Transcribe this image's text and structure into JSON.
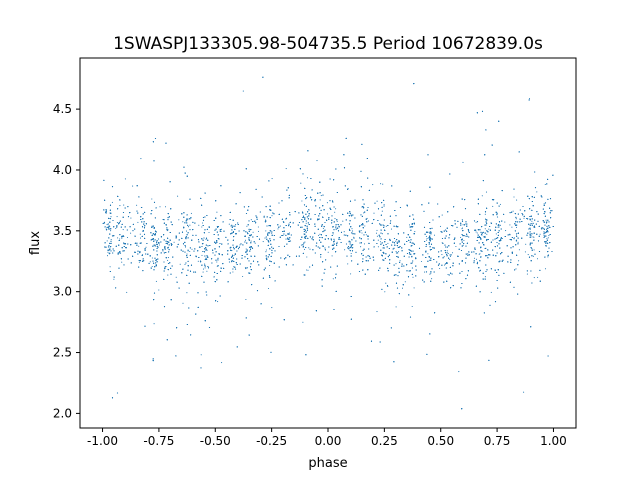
{
  "chart_data": {
    "type": "scatter",
    "title": "1SWASPJ133305.98-504735.5 Period 10672839.0s",
    "xlabel": "phase",
    "ylabel": "flux",
    "xlim": [
      -1.1,
      1.1
    ],
    "ylim": [
      1.88,
      4.92
    ],
    "xticks": [
      "-1.00",
      "-0.75",
      "-0.50",
      "-0.25",
      "0.00",
      "0.25",
      "0.50",
      "0.75",
      "1.00"
    ],
    "yticks": [
      "2.0",
      "2.5",
      "3.0",
      "3.5",
      "4.0",
      "4.5"
    ],
    "grid": false,
    "legend": "none",
    "marker_color": "#1f77b4",
    "phase_range": [
      -1.0,
      1.0
    ],
    "flux_core_range": [
      3.1,
      3.9
    ],
    "flux_median": 3.43,
    "flux_min": 2.0,
    "flux_max": 4.78,
    "dense_bands_phase": [
      -0.97,
      -0.91,
      -0.83,
      -0.77,
      -0.71,
      -0.63,
      -0.55,
      -0.49,
      -0.42,
      -0.35,
      -0.26,
      -0.18,
      -0.1,
      -0.03,
      0.03,
      0.1,
      0.16,
      0.24,
      0.3,
      0.37,
      0.45,
      0.53,
      0.6,
      0.68,
      0.75,
      0.83,
      0.9,
      0.97
    ]
  }
}
